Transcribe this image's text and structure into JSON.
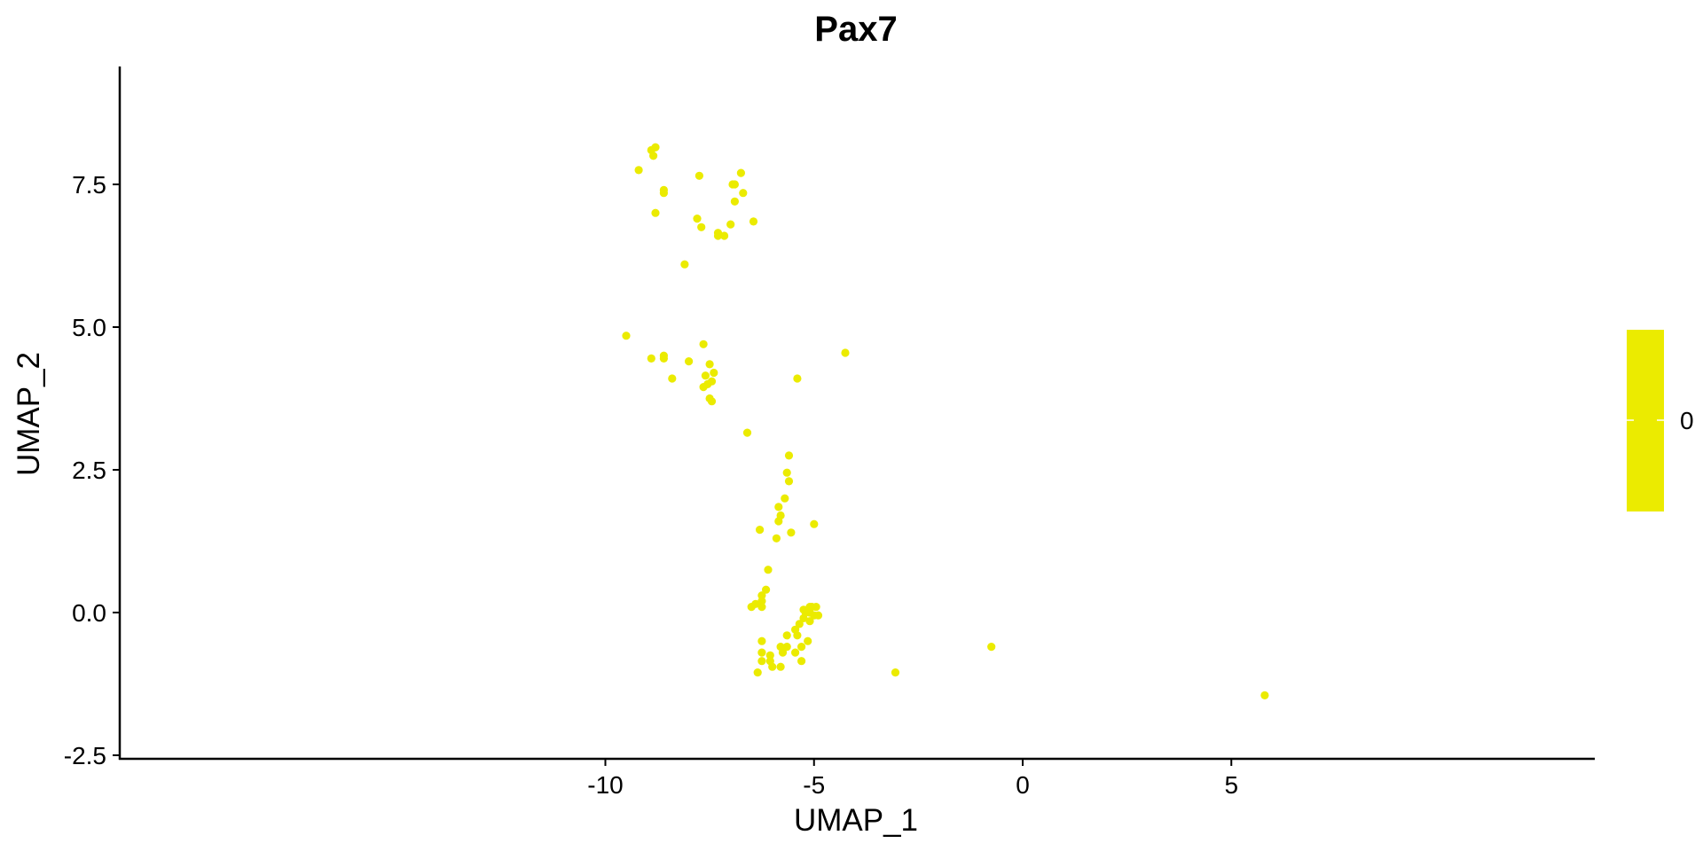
{
  "chart_data": {
    "type": "scatter",
    "title": "Pax7",
    "xlabel": "UMAP_1",
    "ylabel": "UMAP_2",
    "xlim": [
      -10.8,
      6.8
    ],
    "ylim": [
      -2.6,
      9.5
    ],
    "x_ticks": [
      {
        "value": -10,
        "label": "-10"
      },
      {
        "value": -5,
        "label": "-5"
      },
      {
        "value": 0,
        "label": "0"
      },
      {
        "value": 5,
        "label": "5"
      }
    ],
    "y_ticks": [
      {
        "value": -2.5,
        "label": "-2.5"
      },
      {
        "value": 0,
        "label": "0.0"
      },
      {
        "value": 2.5,
        "label": "2.5"
      },
      {
        "value": 5,
        "label": "5.0"
      },
      {
        "value": 7.5,
        "label": "7.5"
      }
    ],
    "point_color": "#EBEB00",
    "grid": false,
    "legend": {
      "position": "right",
      "type": "colorbar",
      "color": "#EBEB00",
      "labels": [
        "0"
      ]
    },
    "points": [
      {
        "x": -8.9,
        "y": 8.1
      },
      {
        "x": -8.8,
        "y": 8.15
      },
      {
        "x": -8.85,
        "y": 8.0
      },
      {
        "x": -9.2,
        "y": 7.75
      },
      {
        "x": -8.6,
        "y": 7.4
      },
      {
        "x": -8.6,
        "y": 7.35
      },
      {
        "x": -8.8,
        "y": 7.0
      },
      {
        "x": -7.75,
        "y": 7.65
      },
      {
        "x": -7.8,
        "y": 6.9
      },
      {
        "x": -7.7,
        "y": 6.75
      },
      {
        "x": -6.75,
        "y": 7.7
      },
      {
        "x": -6.95,
        "y": 7.5
      },
      {
        "x": -6.9,
        "y": 7.5
      },
      {
        "x": -6.7,
        "y": 7.35
      },
      {
        "x": -6.9,
        "y": 7.2
      },
      {
        "x": -6.45,
        "y": 6.85
      },
      {
        "x": -7.0,
        "y": 6.8
      },
      {
        "x": -7.3,
        "y": 6.65
      },
      {
        "x": -7.3,
        "y": 6.6
      },
      {
        "x": -7.15,
        "y": 6.6
      },
      {
        "x": -8.1,
        "y": 6.1
      },
      {
        "x": -9.5,
        "y": 4.85
      },
      {
        "x": -8.9,
        "y": 4.45
      },
      {
        "x": -8.6,
        "y": 4.5
      },
      {
        "x": -8.6,
        "y": 4.45
      },
      {
        "x": -8.4,
        "y": 4.1
      },
      {
        "x": -8.0,
        "y": 4.4
      },
      {
        "x": -7.65,
        "y": 4.7
      },
      {
        "x": -7.5,
        "y": 4.35
      },
      {
        "x": -7.4,
        "y": 4.2
      },
      {
        "x": -7.6,
        "y": 4.15
      },
      {
        "x": -7.45,
        "y": 4.05
      },
      {
        "x": -7.55,
        "y": 4.0
      },
      {
        "x": -7.65,
        "y": 3.95
      },
      {
        "x": -7.5,
        "y": 3.75
      },
      {
        "x": -7.45,
        "y": 3.7
      },
      {
        "x": -4.25,
        "y": 4.55
      },
      {
        "x": -5.4,
        "y": 4.1
      },
      {
        "x": -6.6,
        "y": 3.15
      },
      {
        "x": -5.6,
        "y": 2.75
      },
      {
        "x": -5.65,
        "y": 2.45
      },
      {
        "x": -5.6,
        "y": 2.3
      },
      {
        "x": -5.7,
        "y": 2.0
      },
      {
        "x": -5.85,
        "y": 1.85
      },
      {
        "x": -5.8,
        "y": 1.7
      },
      {
        "x": -5.85,
        "y": 1.6
      },
      {
        "x": -6.3,
        "y": 1.45
      },
      {
        "x": -5.9,
        "y": 1.3
      },
      {
        "x": -5.55,
        "y": 1.4
      },
      {
        "x": -5.0,
        "y": 1.55
      },
      {
        "x": -6.1,
        "y": 0.75
      },
      {
        "x": -6.15,
        "y": 0.4
      },
      {
        "x": -6.25,
        "y": 0.3
      },
      {
        "x": -6.25,
        "y": 0.2
      },
      {
        "x": -6.4,
        "y": 0.15
      },
      {
        "x": -6.5,
        "y": 0.1
      },
      {
        "x": -6.25,
        "y": 0.1
      },
      {
        "x": -5.25,
        "y": 0.05
      },
      {
        "x": -5.15,
        "y": 0.05
      },
      {
        "x": -5.1,
        "y": 0.1
      },
      {
        "x": -5.05,
        "y": 0.1
      },
      {
        "x": -4.95,
        "y": 0.1
      },
      {
        "x": -5.2,
        "y": 0.0
      },
      {
        "x": -5.1,
        "y": 0.0
      },
      {
        "x": -5.0,
        "y": -0.05
      },
      {
        "x": -4.9,
        "y": -0.05
      },
      {
        "x": -5.25,
        "y": -0.1
      },
      {
        "x": -5.1,
        "y": -0.15
      },
      {
        "x": -5.35,
        "y": -0.2
      },
      {
        "x": -5.45,
        "y": -0.3
      },
      {
        "x": -5.4,
        "y": -0.4
      },
      {
        "x": -5.65,
        "y": -0.4
      },
      {
        "x": -6.25,
        "y": -0.5
      },
      {
        "x": -5.15,
        "y": -0.5
      },
      {
        "x": -5.3,
        "y": -0.6
      },
      {
        "x": -5.8,
        "y": -0.6
      },
      {
        "x": -5.65,
        "y": -0.6
      },
      {
        "x": -6.25,
        "y": -0.7
      },
      {
        "x": -5.75,
        "y": -0.7
      },
      {
        "x": -5.45,
        "y": -0.7
      },
      {
        "x": -6.05,
        "y": -0.75
      },
      {
        "x": -6.25,
        "y": -0.85
      },
      {
        "x": -6.05,
        "y": -0.85
      },
      {
        "x": -5.3,
        "y": -0.85
      },
      {
        "x": -6.0,
        "y": -0.95
      },
      {
        "x": -5.8,
        "y": -0.95
      },
      {
        "x": -6.35,
        "y": -1.05
      },
      {
        "x": -3.05,
        "y": -1.05
      },
      {
        "x": -0.75,
        "y": -0.6
      },
      {
        "x": 5.8,
        "y": -1.45
      }
    ]
  }
}
